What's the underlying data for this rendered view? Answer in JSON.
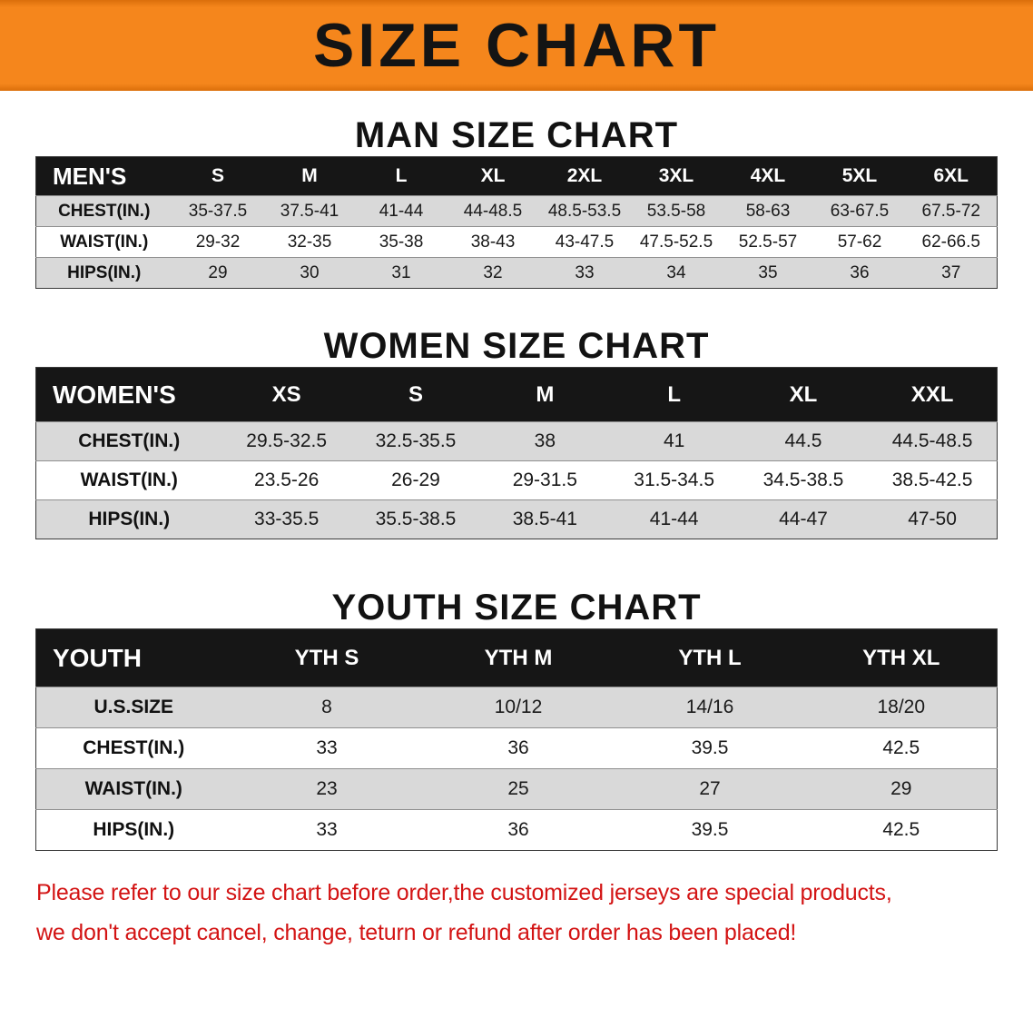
{
  "banner": {
    "title": "SIZE CHART",
    "background_color": "#f5861c",
    "text_color": "#141414"
  },
  "sections": [
    {
      "id": "men",
      "heading": "MAN SIZE CHART",
      "table": {
        "header": [
          "MEN'S",
          "S",
          "M",
          "L",
          "XL",
          "2XL",
          "3XL",
          "4XL",
          "5XL",
          "6XL"
        ],
        "rows": [
          {
            "label": "CHEST(IN.)",
            "values": [
              "35-37.5",
              "37.5-41",
              "41-44",
              "44-48.5",
              "48.5-53.5",
              "53.5-58",
              "58-63",
              "63-67.5",
              "67.5-72"
            ]
          },
          {
            "label": "WAIST(IN.)",
            "values": [
              "29-32",
              "32-35",
              "35-38",
              "38-43",
              "43-47.5",
              "47.5-52.5",
              "52.5-57",
              "57-62",
              "62-66.5"
            ]
          },
          {
            "label": "HIPS(IN.)",
            "values": [
              "29",
              "30",
              "31",
              "32",
              "33",
              "34",
              "35",
              "36",
              "37"
            ]
          }
        ]
      }
    },
    {
      "id": "women",
      "heading": "WOMEN SIZE CHART",
      "table": {
        "header": [
          "WOMEN'S",
          "XS",
          "S",
          "M",
          "L",
          "XL",
          "XXL"
        ],
        "rows": [
          {
            "label": "CHEST(IN.)",
            "values": [
              "29.5-32.5",
              "32.5-35.5",
              "38",
              "41",
              "44.5",
              "44.5-48.5"
            ]
          },
          {
            "label": "WAIST(IN.)",
            "values": [
              "23.5-26",
              "26-29",
              "29-31.5",
              "31.5-34.5",
              "34.5-38.5",
              "38.5-42.5"
            ]
          },
          {
            "label": "HIPS(IN.)",
            "values": [
              "33-35.5",
              "35.5-38.5",
              "38.5-41",
              "41-44",
              "44-47",
              "47-50"
            ]
          }
        ]
      }
    },
    {
      "id": "youth",
      "heading": "YOUTH SIZE CHART",
      "table": {
        "header": [
          "YOUTH",
          "YTH S",
          "YTH M",
          "YTH L",
          "YTH XL"
        ],
        "rows": [
          {
            "label": "U.S.SIZE",
            "values": [
              "8",
              "10/12",
              "14/16",
              "18/20"
            ]
          },
          {
            "label": "CHEST(IN.)",
            "values": [
              "33",
              "36",
              "39.5",
              "42.5"
            ]
          },
          {
            "label": "WAIST(IN.)",
            "values": [
              "23",
              "25",
              "27",
              "29"
            ]
          },
          {
            "label": "HIPS(IN.)",
            "values": [
              "33",
              "36",
              "39.5",
              "42.5"
            ]
          }
        ]
      }
    }
  ],
  "footer": {
    "line1": "Please refer to our size chart before order,the customized jerseys are special products,",
    "line2": "we don't accept cancel, change, teturn or refund after order has been placed!",
    "text_color": "#d31414"
  },
  "colors": {
    "banner_orange": "#f5861c",
    "table_header_bg": "#161616",
    "row_alt_gray": "#d9d9d9",
    "footer_red": "#d31414"
  }
}
